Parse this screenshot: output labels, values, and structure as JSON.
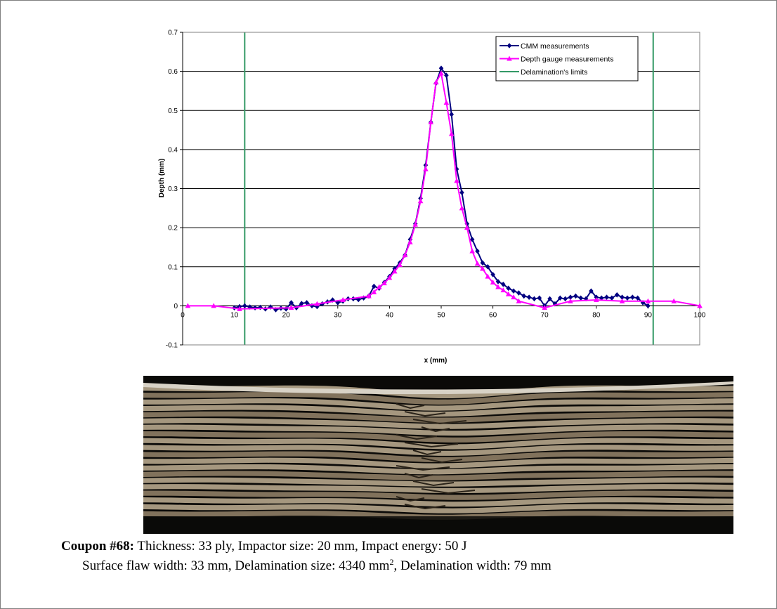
{
  "chart_data": {
    "type": "line",
    "title": "",
    "xlabel": "x (mm)",
    "ylabel": "Depth (mm)",
    "xlim": [
      0,
      100
    ],
    "ylim": [
      -0.1,
      0.7
    ],
    "xticks": [
      0,
      10,
      20,
      30,
      40,
      50,
      60,
      70,
      80,
      90,
      100
    ],
    "xtick_labels": [
      "0",
      "10",
      "20",
      "30",
      "40",
      "50",
      "60",
      "70",
      "80",
      "90",
      "100"
    ],
    "yticks": [
      -0.1,
      0,
      0.1,
      0.2,
      0.3,
      0.4,
      0.5,
      0.6,
      0.7
    ],
    "ytick_labels": [
      "-0.1",
      "0",
      "0.1",
      "0.2",
      "0.3",
      "0.4",
      "0.5",
      "0.6",
      "0.7"
    ],
    "grid": "horizontal",
    "legend_position": "top-right",
    "series": [
      {
        "name": "CMM measurements",
        "color": "#000080",
        "marker": "diamond",
        "x": [
          10,
          11,
          12,
          13,
          14,
          15,
          16,
          17,
          18,
          19,
          20,
          21,
          22,
          23,
          24,
          25,
          26,
          27,
          28,
          29,
          30,
          31,
          32,
          33,
          34,
          35,
          36,
          37,
          38,
          39,
          40,
          41,
          42,
          43,
          44,
          45,
          46,
          47,
          48,
          49,
          50,
          51,
          52,
          53,
          54,
          55,
          56,
          57,
          58,
          59,
          60,
          61,
          62,
          63,
          64,
          65,
          66,
          67,
          68,
          69,
          70,
          71,
          72,
          73,
          74,
          75,
          76,
          77,
          78,
          79,
          80,
          81,
          82,
          83,
          84,
          85,
          86,
          87,
          88,
          89,
          90
        ],
        "y": [
          -0.005,
          -0.002,
          0.0,
          -0.003,
          -0.005,
          -0.004,
          -0.008,
          -0.003,
          -0.01,
          -0.006,
          -0.008,
          0.008,
          -0.005,
          0.006,
          0.008,
          0.0,
          -0.002,
          0.005,
          0.01,
          0.015,
          0.008,
          0.012,
          0.018,
          0.018,
          0.016,
          0.02,
          0.025,
          0.05,
          0.045,
          0.06,
          0.075,
          0.095,
          0.11,
          0.13,
          0.17,
          0.21,
          0.275,
          0.36,
          0.47,
          0.57,
          0.608,
          0.59,
          0.49,
          0.35,
          0.29,
          0.21,
          0.17,
          0.14,
          0.11,
          0.1,
          0.08,
          0.062,
          0.055,
          0.045,
          0.038,
          0.033,
          0.025,
          0.022,
          0.018,
          0.02,
          0.0,
          0.018,
          0.005,
          0.02,
          0.018,
          0.022,
          0.025,
          0.02,
          0.018,
          0.038,
          0.022,
          0.02,
          0.022,
          0.02,
          0.028,
          0.022,
          0.02,
          0.022,
          0.02,
          0.008,
          0.0
        ]
      },
      {
        "name": "Depth gauge measurements",
        "color": "#ff00ff",
        "marker": "triangle",
        "x": [
          1,
          6,
          11,
          21,
          26,
          31,
          36,
          37,
          38,
          39,
          40,
          41,
          42,
          43,
          44,
          45,
          46,
          47,
          48,
          49,
          50,
          51,
          52,
          53,
          54,
          55,
          56,
          57,
          58,
          59,
          60,
          61,
          62,
          63,
          64,
          65,
          70,
          75,
          80,
          85,
          90,
          95,
          100
        ],
        "y": [
          0.0,
          0.0,
          -0.008,
          -0.005,
          0.005,
          0.015,
          0.025,
          0.035,
          0.048,
          0.058,
          0.072,
          0.088,
          0.105,
          0.13,
          0.163,
          0.208,
          0.268,
          0.35,
          0.47,
          0.572,
          0.595,
          0.52,
          0.44,
          0.32,
          0.25,
          0.2,
          0.14,
          0.108,
          0.095,
          0.075,
          0.06,
          0.048,
          0.04,
          0.03,
          0.022,
          0.012,
          -0.005,
          0.012,
          0.015,
          0.012,
          0.012,
          0.012,
          0.0
        ]
      },
      {
        "name": "Delamination's limits",
        "color": "#339966",
        "marker": "none",
        "vlines": [
          12,
          91
        ]
      }
    ]
  },
  "caption": {
    "coupon_label": "Coupon #68:",
    "line1_rest": " Thickness: 33 ply, Impactor size: 20 mm, Impact energy: 50 J",
    "line2_a": "Surface flaw width: 33 mm, Delamination size: 4340 mm",
    "line2_sup": "2",
    "line2_b": ", Delamination width: 79 mm"
  },
  "micrograph": {
    "colors": {
      "background": "#0b0a08",
      "ply_light": "#b3a48a",
      "ply_mid": "#8c7c64",
      "ply_dark": "#2a2319",
      "surface": "#d8d2c6"
    }
  }
}
